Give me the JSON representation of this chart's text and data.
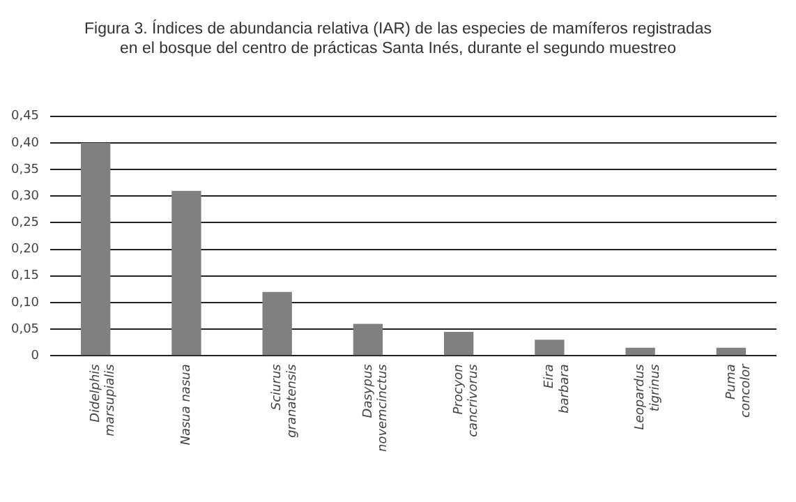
{
  "chart_data": {
    "type": "bar",
    "title": "Figura 3. Índices de abundancia relativa (IAR) de las especies de mamíferos registradas en el bosque del centro de prácticas Santa Inés, durante el segundo muestreo",
    "categories": [
      "Didelphis\nmarsupialis",
      "Nasua nasua",
      "Sciurus\ngranatensis",
      "Dasypus\nnovemcinctus",
      "Procyon\ncancrivorus",
      "Eira\nbarbara",
      "Leopardus\ntigrinus",
      "Puma\nconcolor"
    ],
    "values": [
      0.4,
      0.31,
      0.12,
      0.06,
      0.045,
      0.03,
      0.015,
      0.015
    ],
    "color": "#808080",
    "ylim": [
      0,
      0.45
    ],
    "yticks": [
      {
        "value": 0,
        "label": "0"
      },
      {
        "value": 0.05,
        "label": "0,05"
      },
      {
        "value": 0.1,
        "label": "0,10"
      },
      {
        "value": 0.15,
        "label": "0,15"
      },
      {
        "value": 0.2,
        "label": "0,20"
      },
      {
        "value": 0.25,
        "label": "0,25"
      },
      {
        "value": 0.3,
        "label": "0,30"
      },
      {
        "value": 0.35,
        "label": "0,35"
      },
      {
        "value": 0.4,
        "label": "0,40"
      },
      {
        "value": 0.45,
        "label": "0,45"
      }
    ],
    "grid": "y"
  }
}
